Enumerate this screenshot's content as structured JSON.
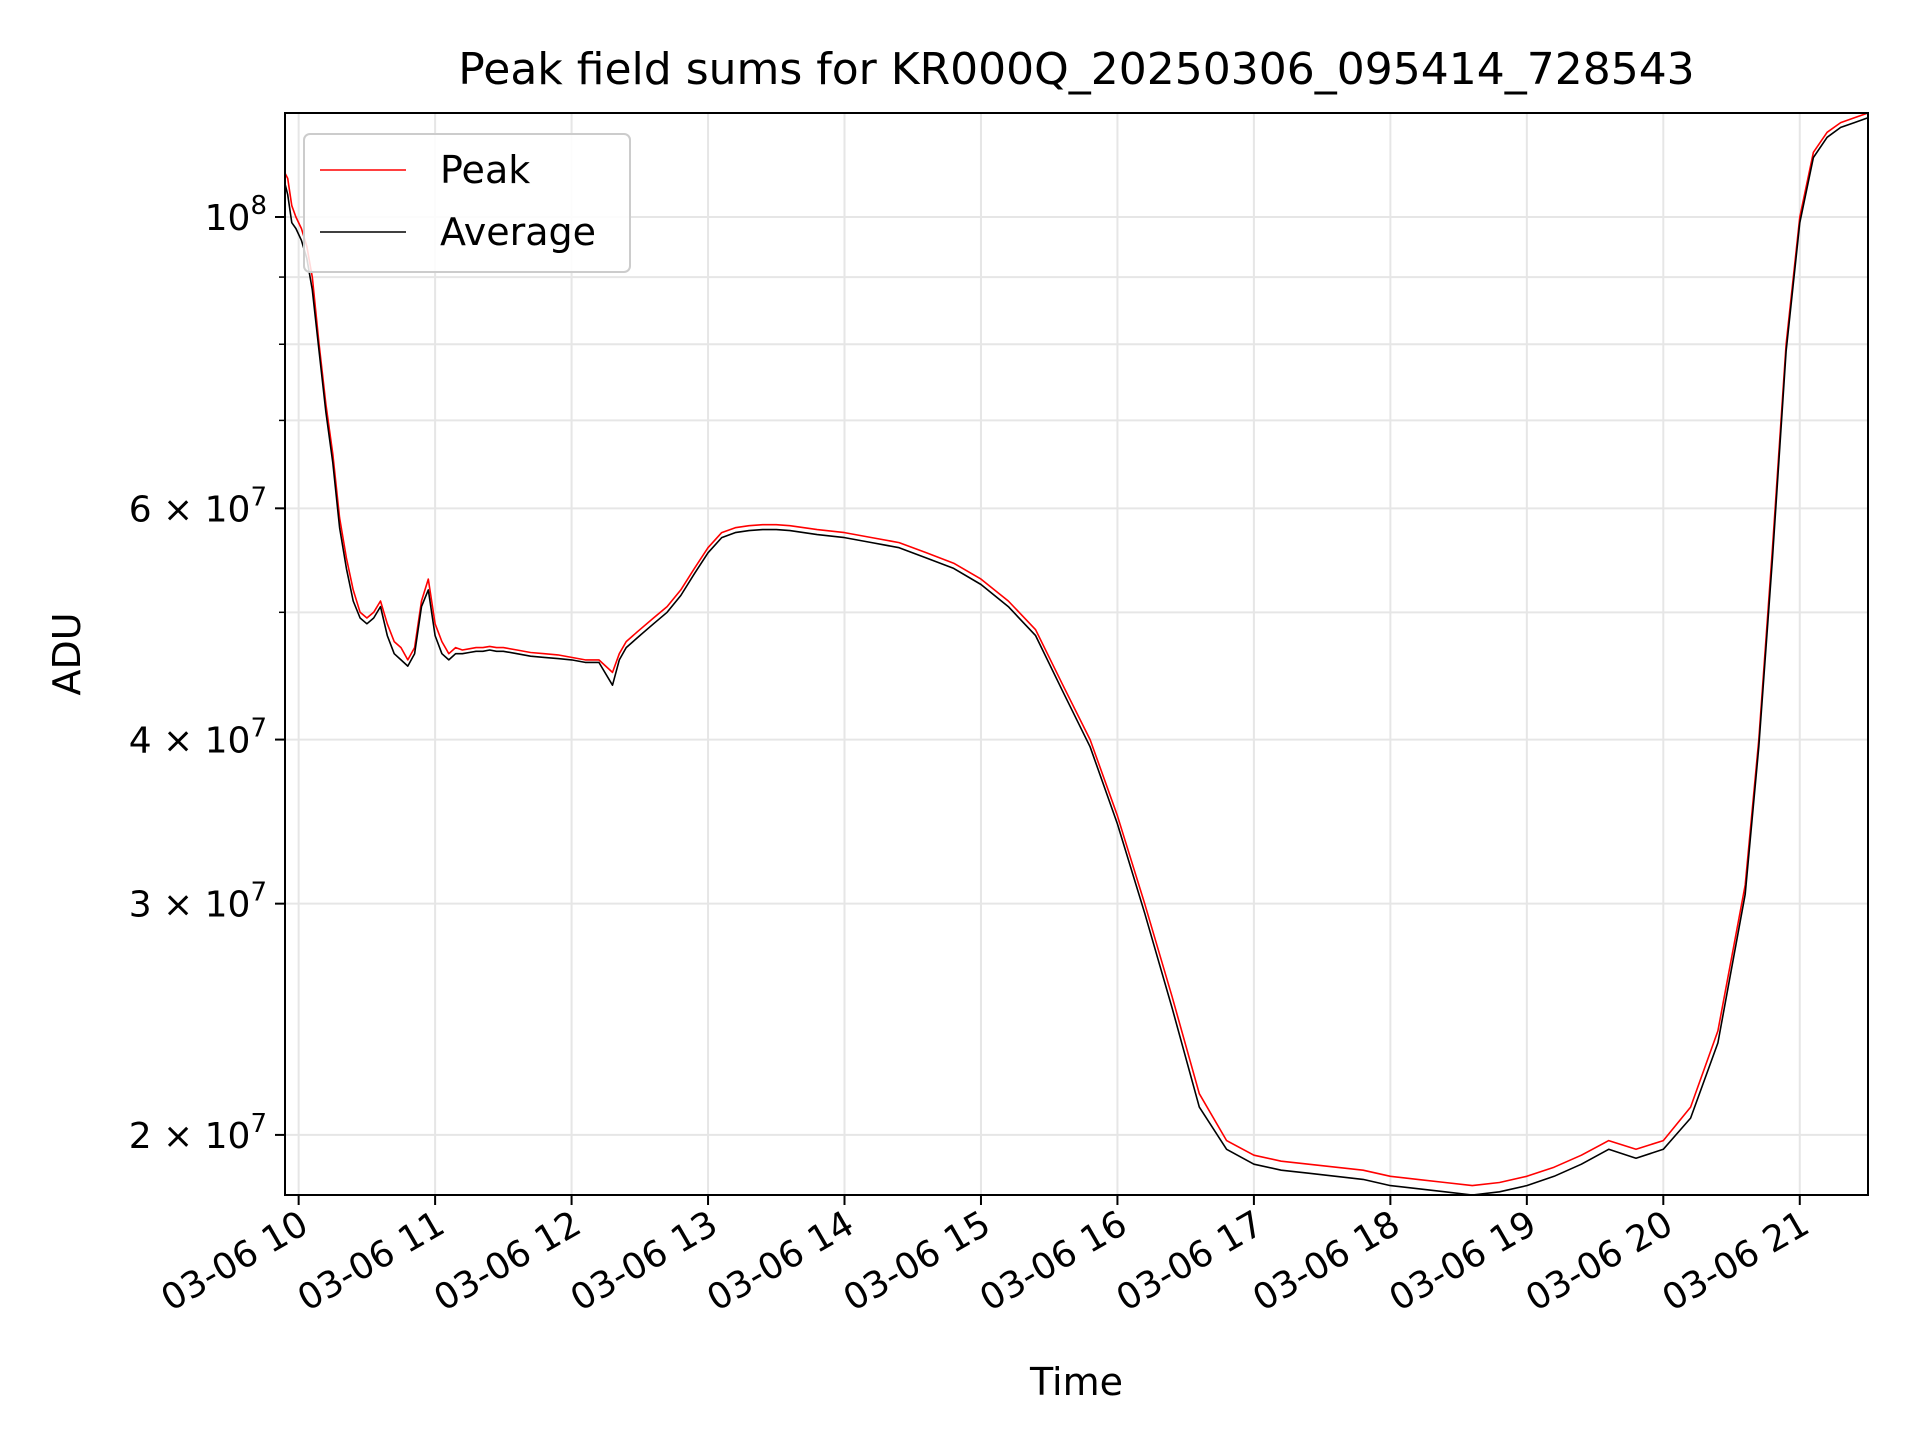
{
  "chart_data": {
    "type": "line",
    "title": "Peak field sums for KR000Q_20250306_095414_728543",
    "xlabel": "Time",
    "ylabel": "ADU",
    "yscale": "log",
    "grid": true,
    "legend_position": "upper-left",
    "xlim": [
      9.9,
      21.5
    ],
    "ylim": [
      18000000,
      120000000
    ],
    "xticks": [
      {
        "value": 10,
        "label": "03-06 10"
      },
      {
        "value": 11,
        "label": "03-06 11"
      },
      {
        "value": 12,
        "label": "03-06 12"
      },
      {
        "value": 13,
        "label": "03-06 13"
      },
      {
        "value": 14,
        "label": "03-06 14"
      },
      {
        "value": 15,
        "label": "03-06 15"
      },
      {
        "value": 16,
        "label": "03-06 16"
      },
      {
        "value": 17,
        "label": "03-06 17"
      },
      {
        "value": 18,
        "label": "03-06 18"
      },
      {
        "value": 19,
        "label": "03-06 19"
      },
      {
        "value": 20,
        "label": "03-06 20"
      },
      {
        "value": 21,
        "label": "03-06 21"
      }
    ],
    "yticks_major": [
      {
        "value": 100000000,
        "base": "10",
        "exp": "8"
      },
      {
        "value": 60000000,
        "base": "6 × 10",
        "exp": "7"
      },
      {
        "value": 40000000,
        "base": "4 × 10",
        "exp": "7"
      },
      {
        "value": 30000000,
        "base": "3 × 10",
        "exp": "7"
      },
      {
        "value": 20000000,
        "base": "2 × 10",
        "exp": "7"
      }
    ],
    "yticks_minor": [
      50000000,
      70000000,
      80000000,
      90000000
    ],
    "series": [
      {
        "name": "Peak",
        "color": "#ff0000",
        "x": [
          9.9,
          9.92,
          9.95,
          9.98,
          10.02,
          10.06,
          10.1,
          10.15,
          10.2,
          10.25,
          10.3,
          10.35,
          10.4,
          10.45,
          10.5,
          10.55,
          10.6,
          10.65,
          10.7,
          10.75,
          10.8,
          10.85,
          10.9,
          10.95,
          11.0,
          11.05,
          11.1,
          11.15,
          11.2,
          11.25,
          11.3,
          11.35,
          11.4,
          11.45,
          11.5,
          11.6,
          11.7,
          11.8,
          11.9,
          12.0,
          12.1,
          12.2,
          12.3,
          12.35,
          12.4,
          12.45,
          12.5,
          12.6,
          12.7,
          12.8,
          12.9,
          13.0,
          13.1,
          13.2,
          13.3,
          13.4,
          13.5,
          13.6,
          13.8,
          14.0,
          14.2,
          14.4,
          14.6,
          14.8,
          15.0,
          15.2,
          15.4,
          15.6,
          15.8,
          16.0,
          16.2,
          16.4,
          16.6,
          16.8,
          17.0,
          17.2,
          17.4,
          17.6,
          17.8,
          18.0,
          18.2,
          18.4,
          18.6,
          18.8,
          19.0,
          19.2,
          19.4,
          19.6,
          19.8,
          20.0,
          20.2,
          20.4,
          20.6,
          20.7,
          20.8,
          20.9,
          21.0,
          21.1,
          21.2,
          21.3,
          21.4,
          21.5
        ],
        "y": [
          108000000,
          107000000,
          102000000,
          100000000,
          98000000,
          95000000,
          90000000,
          80000000,
          72000000,
          66000000,
          59000000,
          55000000,
          52000000,
          50000000,
          49500000,
          50000000,
          51000000,
          49000000,
          47500000,
          47000000,
          46000000,
          47000000,
          51000000,
          53000000,
          49000000,
          47500000,
          46500000,
          47000000,
          46800000,
          46900000,
          47000000,
          47000000,
          47100000,
          47000000,
          47000000,
          46800000,
          46600000,
          46500000,
          46400000,
          46200000,
          46000000,
          46000000,
          45000000,
          46500000,
          47500000,
          48000000,
          48500000,
          49500000,
          50500000,
          52000000,
          54000000,
          56000000,
          57500000,
          58000000,
          58200000,
          58300000,
          58300000,
          58200000,
          57800000,
          57500000,
          57000000,
          56500000,
          55500000,
          54500000,
          53000000,
          51000000,
          48500000,
          44000000,
          40000000,
          35000000,
          30000000,
          25500000,
          21500000,
          19800000,
          19300000,
          19100000,
          19000000,
          18900000,
          18800000,
          18600000,
          18500000,
          18400000,
          18300000,
          18400000,
          18600000,
          18900000,
          19300000,
          19800000,
          19500000,
          19800000,
          21000000,
          24000000,
          31000000,
          40000000,
          56000000,
          80000000,
          100000000,
          112000000,
          116000000,
          118000000,
          119000000,
          120000000
        ]
      },
      {
        "name": "Average",
        "color": "#000000",
        "x": [
          9.9,
          9.92,
          9.95,
          9.98,
          10.02,
          10.06,
          10.1,
          10.15,
          10.2,
          10.25,
          10.3,
          10.35,
          10.4,
          10.45,
          10.5,
          10.55,
          10.6,
          10.65,
          10.7,
          10.75,
          10.8,
          10.85,
          10.9,
          10.95,
          11.0,
          11.05,
          11.1,
          11.15,
          11.2,
          11.25,
          11.3,
          11.35,
          11.4,
          11.45,
          11.5,
          11.6,
          11.7,
          11.8,
          11.9,
          12.0,
          12.1,
          12.2,
          12.3,
          12.35,
          12.4,
          12.45,
          12.5,
          12.6,
          12.7,
          12.8,
          12.9,
          13.0,
          13.1,
          13.2,
          13.3,
          13.4,
          13.5,
          13.6,
          13.8,
          14.0,
          14.2,
          14.4,
          14.6,
          14.8,
          15.0,
          15.2,
          15.4,
          15.6,
          15.8,
          16.0,
          16.2,
          16.4,
          16.6,
          16.8,
          17.0,
          17.2,
          17.4,
          17.6,
          17.8,
          18.0,
          18.2,
          18.4,
          18.6,
          18.8,
          19.0,
          19.2,
          19.4,
          19.6,
          19.8,
          20.0,
          20.2,
          20.4,
          20.6,
          20.7,
          20.8,
          20.9,
          21.0,
          21.1,
          21.2,
          21.3,
          21.4,
          21.5
        ],
        "y": [
          106000000,
          104000000,
          99000000,
          98000000,
          96000000,
          93000000,
          88000000,
          79000000,
          71000000,
          65000000,
          58000000,
          54000000,
          51000000,
          49500000,
          49000000,
          49500000,
          50500000,
          48000000,
          46500000,
          46000000,
          45500000,
          46500000,
          50500000,
          52000000,
          48000000,
          46500000,
          46000000,
          46500000,
          46500000,
          46600000,
          46700000,
          46700000,
          46800000,
          46700000,
          46700000,
          46500000,
          46300000,
          46200000,
          46100000,
          46000000,
          45800000,
          45800000,
          44000000,
          46000000,
          47000000,
          47500000,
          48000000,
          49000000,
          50000000,
          51500000,
          53500000,
          55500000,
          57000000,
          57500000,
          57700000,
          57800000,
          57800000,
          57700000,
          57300000,
          57000000,
          56500000,
          56000000,
          55000000,
          54000000,
          52500000,
          50500000,
          48000000,
          43500000,
          39500000,
          34500000,
          29500000,
          25000000,
          21000000,
          19500000,
          19000000,
          18800000,
          18700000,
          18600000,
          18500000,
          18300000,
          18200000,
          18100000,
          18000000,
          18100000,
          18300000,
          18600000,
          19000000,
          19500000,
          19200000,
          19500000,
          20600000,
          23500000,
          30500000,
          39500000,
          55000000,
          79000000,
          99000000,
          111000000,
          115000000,
          117000000,
          118000000,
          119000000
        ]
      }
    ]
  }
}
